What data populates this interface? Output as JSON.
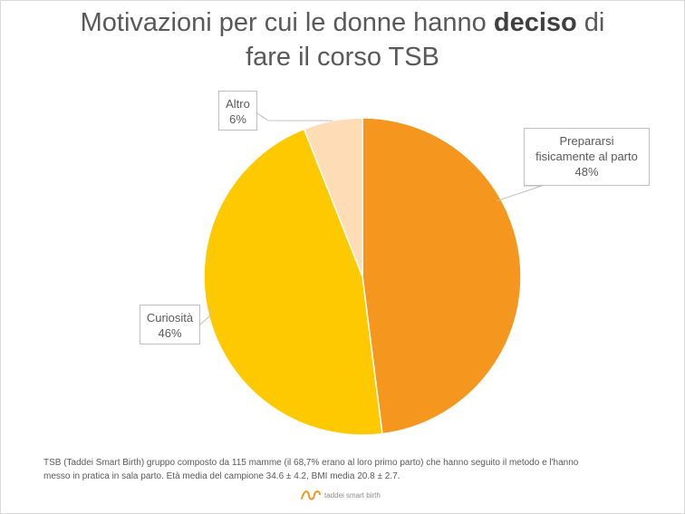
{
  "chart_data": {
    "type": "pie",
    "title_part1": "Motivazioni per cui le donne hanno ",
    "title_bold": "deciso",
    "title_part2": " di",
    "title_line2": "fare il corso TSB",
    "slices": [
      {
        "label_line1": "Prepararsi",
        "label_line2": "fisicamente al parto",
        "value": 48,
        "value_label": "48%",
        "color": "#f5961e"
      },
      {
        "label_line1": "Curiosità",
        "label_line2": "",
        "value": 46,
        "value_label": "46%",
        "color": "#ffc900"
      },
      {
        "label_line1": "Altro",
        "label_line2": "",
        "value": 6,
        "value_label": "6%",
        "color": "#fddcb6"
      }
    ]
  },
  "footnote_line1": "TSB (Taddei Smart Birth) gruppo composto da 115 mamme (il 68,7% erano al loro primo parto) che hanno seguito il metodo e l'hanno",
  "footnote_line2": "messo in pratica in sala parto. Età media del campione 34.6 ± 4.2, BMI media 20.8 ± 2.7.",
  "brand_text": "taddei smart birth",
  "brand_logo_color": "#f5961e"
}
